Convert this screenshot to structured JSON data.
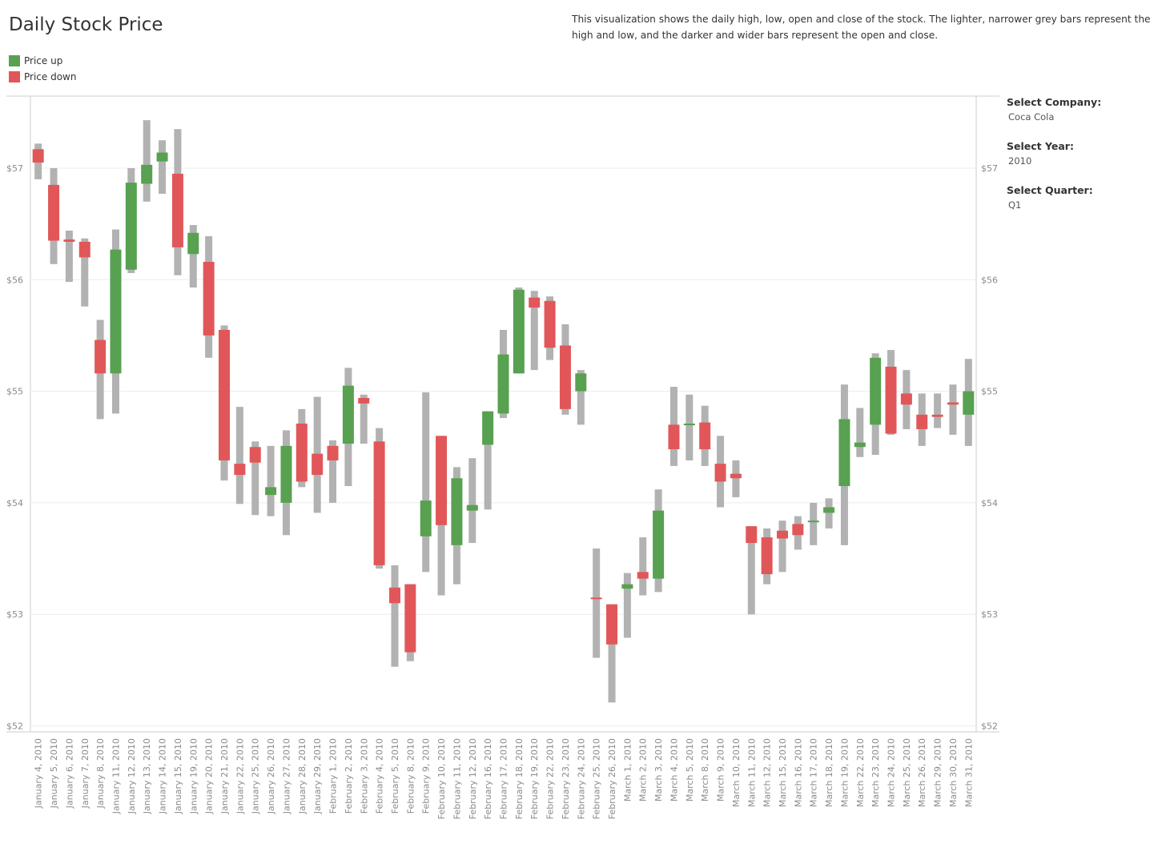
{
  "header": {
    "title": "Daily Stock Price",
    "description": "This visualization shows the daily high, low, open and close of the stock. The lighter, narrower grey bars represent the high and low, and the darker and wider bars represent the open and close."
  },
  "legend": {
    "items": [
      {
        "label": "Price up",
        "color": "#57a150"
      },
      {
        "label": "Price down",
        "color": "#e15759"
      }
    ]
  },
  "filters": {
    "company": {
      "label": "Select Company:",
      "value": "Coca Cola"
    },
    "year": {
      "label": "Select Year:",
      "value": "2010"
    },
    "quarter": {
      "label": "Select Quarter:",
      "value": "Q1"
    }
  },
  "colors": {
    "up": "#57a150",
    "down": "#e15759",
    "range": "#b2b2b2",
    "grid": "#ececec",
    "axis": "#cccccc"
  },
  "chart_data": {
    "type": "candlestick",
    "ylim": [
      52,
      57.6
    ],
    "yticks": [
      52,
      53,
      54,
      55,
      56,
      57
    ],
    "ytick_labels": [
      "$52",
      "$53",
      "$54",
      "$55",
      "$56",
      "$57"
    ],
    "series": [
      {
        "date": "January 4, 2010",
        "open": 57.17,
        "close": 57.05,
        "high": 57.22,
        "low": 56.9
      },
      {
        "date": "January 5, 2010",
        "open": 56.85,
        "close": 56.35,
        "high": 57.0,
        "low": 56.14
      },
      {
        "date": "January 6, 2010",
        "open": 56.36,
        "close": 56.34,
        "high": 56.44,
        "low": 55.98
      },
      {
        "date": "January 7, 2010",
        "open": 56.34,
        "close": 56.2,
        "high": 56.37,
        "low": 55.76
      },
      {
        "date": "January 8, 2010",
        "open": 55.46,
        "close": 55.16,
        "high": 55.64,
        "low": 54.75
      },
      {
        "date": "January 11, 2010",
        "open": 55.16,
        "close": 56.27,
        "high": 56.45,
        "low": 54.8
      },
      {
        "date": "January 12, 2010",
        "open": 56.09,
        "close": 56.87,
        "high": 57.0,
        "low": 56.06
      },
      {
        "date": "January 13, 2010",
        "open": 56.86,
        "close": 57.03,
        "high": 57.43,
        "low": 56.7
      },
      {
        "date": "January 14, 2010",
        "open": 57.06,
        "close": 57.14,
        "high": 57.25,
        "low": 56.77
      },
      {
        "date": "January 15, 2010",
        "open": 56.95,
        "close": 56.29,
        "high": 57.35,
        "low": 56.04
      },
      {
        "date": "January 19, 2010",
        "open": 56.23,
        "close": 56.42,
        "high": 56.49,
        "low": 55.93
      },
      {
        "date": "January 20, 2010",
        "open": 56.16,
        "close": 55.5,
        "high": 56.39,
        "low": 55.3
      },
      {
        "date": "January 21, 2010",
        "open": 55.55,
        "close": 54.38,
        "high": 55.59,
        "low": 54.2
      },
      {
        "date": "January 22, 2010",
        "open": 54.35,
        "close": 54.25,
        "high": 54.86,
        "low": 53.99
      },
      {
        "date": "January 25, 2010",
        "open": 54.5,
        "close": 54.36,
        "high": 54.55,
        "low": 53.89
      },
      {
        "date": "January 26, 2010",
        "open": 54.07,
        "close": 54.14,
        "high": 54.51,
        "low": 53.88
      },
      {
        "date": "January 27, 2010",
        "open": 54.0,
        "close": 54.51,
        "high": 54.65,
        "low": 53.71
      },
      {
        "date": "January 28, 2010",
        "open": 54.71,
        "close": 54.19,
        "high": 54.84,
        "low": 54.14
      },
      {
        "date": "January 29, 2010",
        "open": 54.44,
        "close": 54.25,
        "high": 54.95,
        "low": 53.91
      },
      {
        "date": "February 1, 2010",
        "open": 54.51,
        "close": 54.38,
        "high": 54.56,
        "low": 54.0
      },
      {
        "date": "February 2, 2010",
        "open": 54.53,
        "close": 55.05,
        "high": 55.21,
        "low": 54.15
      },
      {
        "date": "February 3, 2010",
        "open": 54.94,
        "close": 54.89,
        "high": 54.97,
        "low": 54.53
      },
      {
        "date": "February 4, 2010",
        "open": 54.55,
        "close": 53.44,
        "high": 54.67,
        "low": 53.41
      },
      {
        "date": "February 5, 2010",
        "open": 53.24,
        "close": 53.1,
        "high": 53.44,
        "low": 52.53
      },
      {
        "date": "February 8, 2010",
        "open": 53.27,
        "close": 52.66,
        "high": 53.27,
        "low": 52.58
      },
      {
        "date": "February 9, 2010",
        "open": 53.7,
        "close": 54.02,
        "high": 54.99,
        "low": 53.38
      },
      {
        "date": "February 10, 2010",
        "open": 54.6,
        "close": 53.8,
        "high": 54.6,
        "low": 53.17
      },
      {
        "date": "February 11, 2010",
        "open": 53.62,
        "close": 54.22,
        "high": 54.32,
        "low": 53.27
      },
      {
        "date": "February 12, 2010",
        "open": 53.93,
        "close": 53.98,
        "high": 54.4,
        "low": 53.64
      },
      {
        "date": "February 16, 2010",
        "open": 54.52,
        "close": 54.82,
        "high": 54.82,
        "low": 53.94
      },
      {
        "date": "February 17, 2010",
        "open": 54.8,
        "close": 55.33,
        "high": 55.55,
        "low": 54.76
      },
      {
        "date": "February 18, 2010",
        "open": 55.16,
        "close": 55.91,
        "high": 55.93,
        "low": 55.16
      },
      {
        "date": "February 19, 2010",
        "open": 55.84,
        "close": 55.75,
        "high": 55.9,
        "low": 55.19
      },
      {
        "date": "February 22, 2010",
        "open": 55.81,
        "close": 55.39,
        "high": 55.85,
        "low": 55.28
      },
      {
        "date": "February 23, 2010",
        "open": 55.41,
        "close": 54.84,
        "high": 55.6,
        "low": 54.79
      },
      {
        "date": "February 24, 2010",
        "open": 55.0,
        "close": 55.16,
        "high": 55.19,
        "low": 54.7
      },
      {
        "date": "February 25, 2010",
        "open": 53.15,
        "close": 53.14,
        "high": 53.59,
        "low": 52.61
      },
      {
        "date": "February 26, 2010",
        "open": 53.09,
        "close": 52.73,
        "high": 53.09,
        "low": 52.21
      },
      {
        "date": "March 1, 2010",
        "open": 53.23,
        "close": 53.27,
        "high": 53.37,
        "low": 52.79
      },
      {
        "date": "March 2, 2010",
        "open": 53.38,
        "close": 53.32,
        "high": 53.69,
        "low": 53.17
      },
      {
        "date": "March 3, 2010",
        "open": 53.32,
        "close": 53.93,
        "high": 54.12,
        "low": 53.2
      },
      {
        "date": "March 4, 2010",
        "open": 54.7,
        "close": 54.48,
        "high": 55.04,
        "low": 54.33
      },
      {
        "date": "March 5, 2010",
        "open": 54.7,
        "close": 54.71,
        "high": 54.97,
        "low": 54.38
      },
      {
        "date": "March 8, 2010",
        "open": 54.72,
        "close": 54.48,
        "high": 54.87,
        "low": 54.33
      },
      {
        "date": "March 9, 2010",
        "open": 54.35,
        "close": 54.19,
        "high": 54.6,
        "low": 53.96
      },
      {
        "date": "March 10, 2010",
        "open": 54.26,
        "close": 54.22,
        "high": 54.38,
        "low": 54.05
      },
      {
        "date": "March 11, 2010",
        "open": 53.79,
        "close": 53.64,
        "high": 53.79,
        "low": 53.0
      },
      {
        "date": "March 12, 2010",
        "open": 53.69,
        "close": 53.36,
        "high": 53.77,
        "low": 53.27
      },
      {
        "date": "March 15, 2010",
        "open": 53.75,
        "close": 53.68,
        "high": 53.84,
        "low": 53.38
      },
      {
        "date": "March 16, 2010",
        "open": 53.81,
        "close": 53.71,
        "high": 53.88,
        "low": 53.58
      },
      {
        "date": "March 17, 2010",
        "open": 53.83,
        "close": 53.84,
        "high": 54.0,
        "low": 53.62
      },
      {
        "date": "March 18, 2010",
        "open": 53.91,
        "close": 53.96,
        "high": 54.04,
        "low": 53.77
      },
      {
        "date": "March 19, 2010",
        "open": 54.15,
        "close": 54.75,
        "high": 55.06,
        "low": 53.62
      },
      {
        "date": "March 22, 2010",
        "open": 54.5,
        "close": 54.54,
        "high": 54.85,
        "low": 54.41
      },
      {
        "date": "March 23, 2010",
        "open": 54.7,
        "close": 55.3,
        "high": 55.34,
        "low": 54.43
      },
      {
        "date": "March 24, 2010",
        "open": 55.22,
        "close": 54.62,
        "high": 55.37,
        "low": 54.61
      },
      {
        "date": "March 25, 2010",
        "open": 54.98,
        "close": 54.88,
        "high": 55.19,
        "low": 54.66
      },
      {
        "date": "March 26, 2010",
        "open": 54.79,
        "close": 54.66,
        "high": 54.98,
        "low": 54.51
      },
      {
        "date": "March 29, 2010",
        "open": 54.79,
        "close": 54.77,
        "high": 54.98,
        "low": 54.67
      },
      {
        "date": "March 30, 2010",
        "open": 54.9,
        "close": 54.88,
        "high": 55.06,
        "low": 54.61
      },
      {
        "date": "March 31, 2010",
        "open": 54.79,
        "close": 55.0,
        "high": 55.29,
        "low": 54.51
      }
    ]
  }
}
